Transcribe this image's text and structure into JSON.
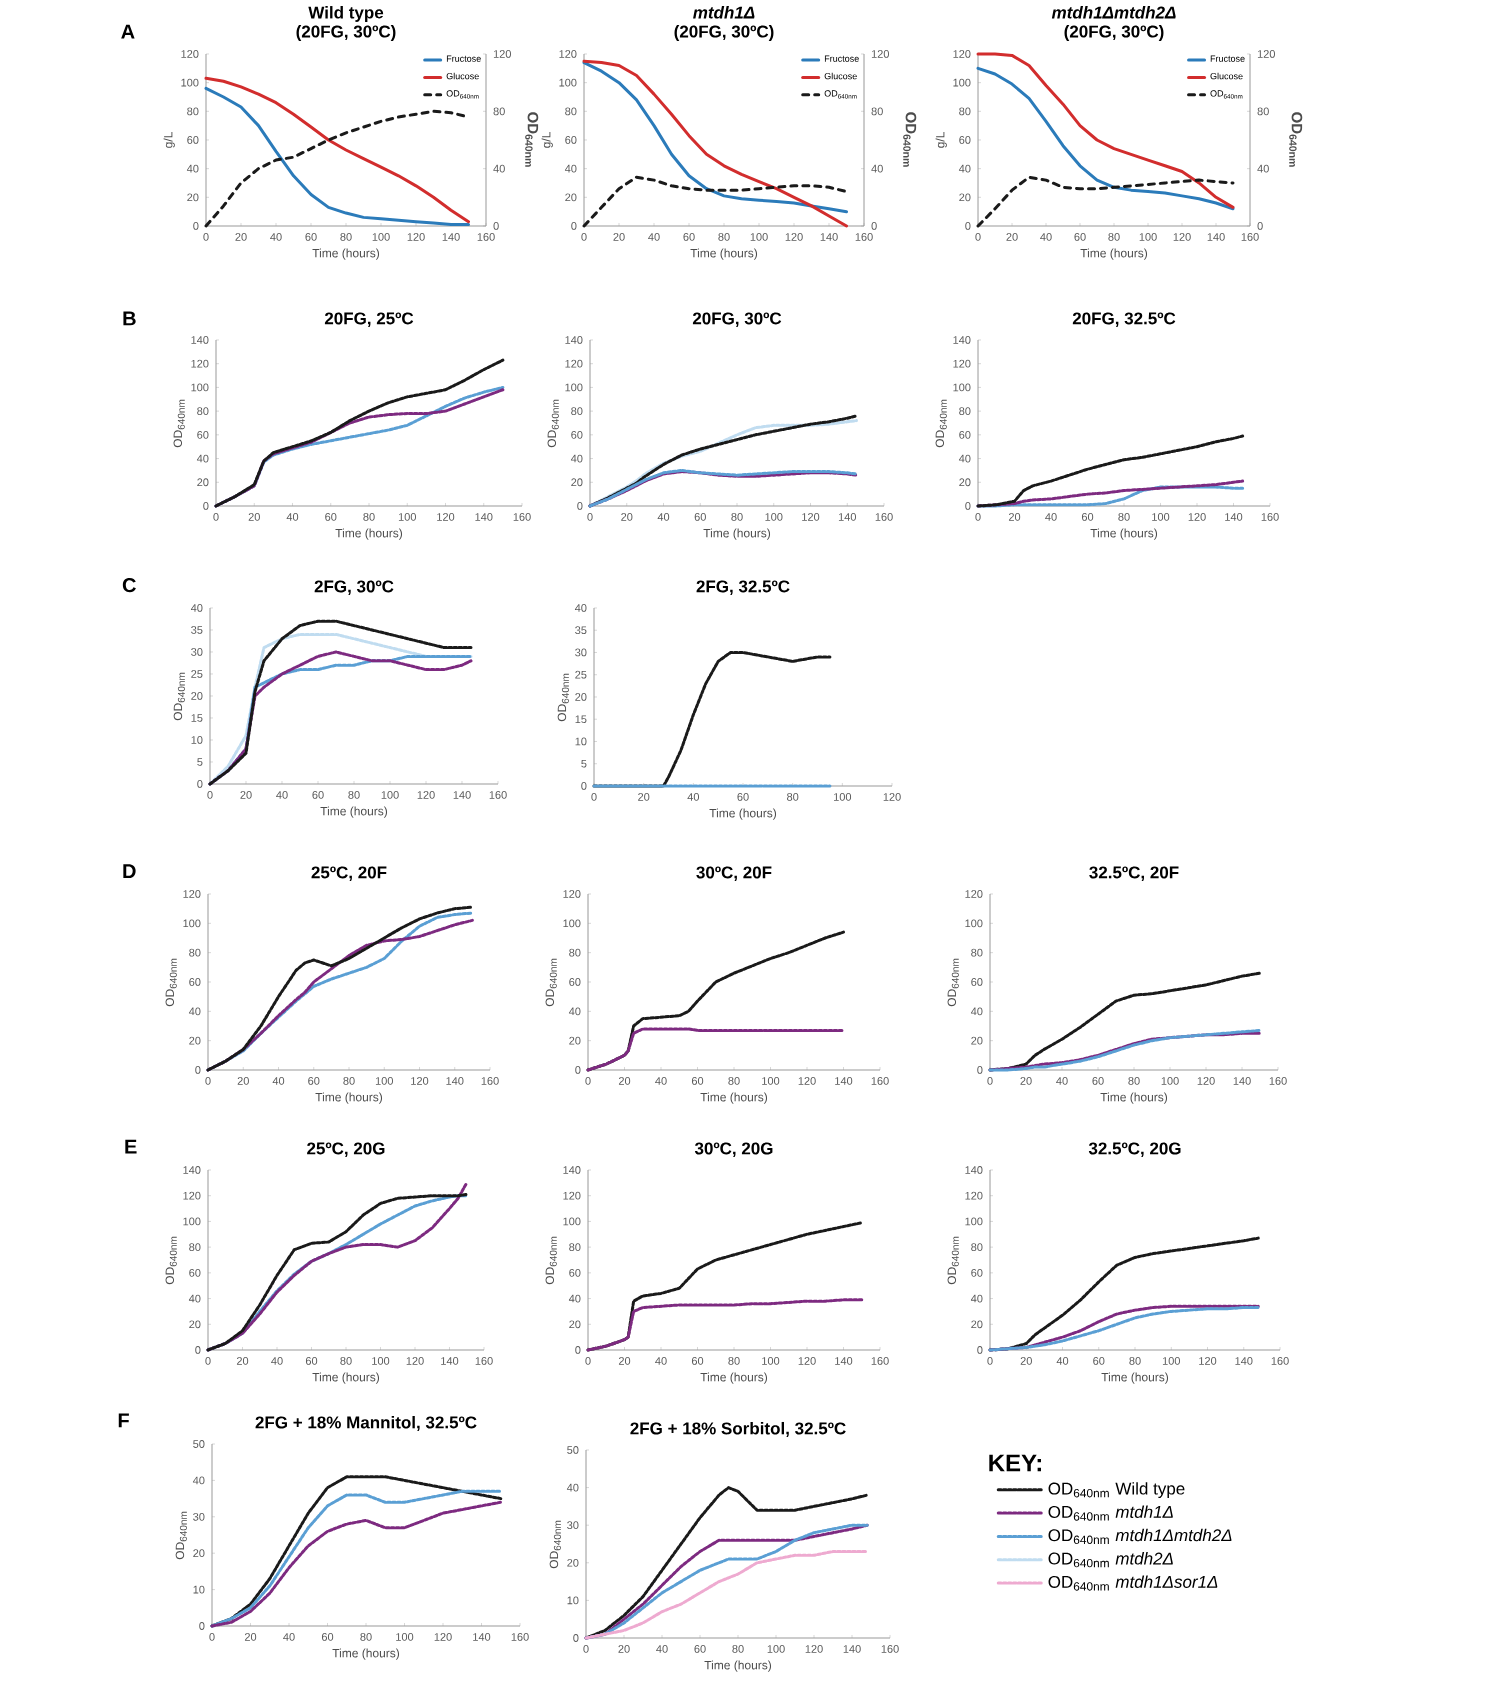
{
  "chart_data": [
    {
      "type": "line",
      "title": "Wild type",
      "subtitle": "(20FG, 30ºC)",
      "xlabel": "Time (hours)",
      "ylabel": "g/L",
      "y2label": "OD$_{640nm}$",
      "annotations": [
        "A"
      ],
      "legend": "top right",
      "xlim": [
        0,
        160
      ],
      "xticks": [
        0,
        20,
        40,
        60,
        80,
        100,
        120,
        140,
        160
      ],
      "ylim": [
        0,
        120
      ],
      "yticks": [
        0,
        20,
        40,
        60,
        80,
        100,
        120
      ],
      "y2lim": [
        0,
        120
      ],
      "y2ticks": [
        0,
        40,
        80,
        120
      ],
      "x": [
        0,
        10,
        20,
        30,
        40,
        50,
        60,
        70,
        80,
        90,
        100,
        110,
        120,
        130,
        140,
        150
      ],
      "series": [
        {
          "name": "Fructose",
          "color": "#2b7bba",
          "values": [
            96,
            90,
            83,
            70,
            52,
            35,
            22,
            13,
            9,
            6,
            5,
            4,
            3,
            2,
            1,
            1
          ]
        },
        {
          "name": "Glucose",
          "color": "#d22d2d",
          "values": [
            103,
            101,
            97,
            92,
            86,
            78,
            69,
            60,
            53,
            47,
            41,
            35,
            28,
            20,
            11,
            3
          ]
        },
        {
          "name": "OD$_{640nm}$",
          "color": "#1a1a1a",
          "axis": "y2",
          "line_style": "dashed",
          "values": [
            0,
            14,
            30,
            40,
            46,
            48,
            54,
            60,
            65,
            69,
            73,
            76,
            78,
            80,
            79,
            76
          ]
        }
      ]
    },
    {
      "type": "line",
      "title": "*mtdh1Δ*",
      "subtitle": "(20FG, 30ºC)",
      "xlabel": "Time (hours)",
      "ylabel": "g/L",
      "y2label": "OD$_{640nm}$",
      "legend": "top right",
      "xlim": [
        0,
        160
      ],
      "xticks": [
        0,
        20,
        40,
        60,
        80,
        100,
        120,
        140,
        160
      ],
      "ylim": [
        0,
        120
      ],
      "yticks": [
        0,
        20,
        40,
        60,
        80,
        100,
        120
      ],
      "y2lim": [
        0,
        120
      ],
      "y2ticks": [
        0,
        40,
        80,
        120
      ],
      "x": [
        0,
        10,
        20,
        30,
        40,
        50,
        60,
        70,
        80,
        90,
        100,
        110,
        120,
        130,
        140,
        150
      ],
      "series": [
        {
          "name": "Fructose",
          "color": "#2b7bba",
          "values": [
            114,
            108,
            100,
            88,
            70,
            50,
            35,
            26,
            21,
            19,
            18,
            17,
            16,
            14,
            12,
            10
          ]
        },
        {
          "name": "Glucose",
          "color": "#d22d2d",
          "values": [
            115,
            114,
            112,
            105,
            92,
            78,
            63,
            50,
            42,
            36,
            31,
            26,
            20,
            14,
            7,
            0
          ]
        },
        {
          "name": "OD$_{640nm}$",
          "color": "#1a1a1a",
          "axis": "y2",
          "line_style": "dashed",
          "values": [
            0,
            13,
            26,
            34,
            32,
            28,
            26,
            25,
            25,
            25,
            26,
            27,
            28,
            28,
            27,
            24
          ]
        }
      ]
    },
    {
      "type": "line",
      "title": "*mtdh1Δmtdh2Δ*",
      "subtitle": "(20FG, 30ºC)",
      "xlabel": "Time (hours)",
      "ylabel": "g/L",
      "y2label": "OD$_{640nm}$",
      "legend": "top right",
      "xlim": [
        0,
        160
      ],
      "xticks": [
        0,
        20,
        40,
        60,
        80,
        100,
        120,
        140,
        160
      ],
      "ylim": [
        0,
        120
      ],
      "yticks": [
        0,
        20,
        40,
        60,
        80,
        100,
        120
      ],
      "y2lim": [
        0,
        120
      ],
      "y2ticks": [
        0,
        40,
        80,
        120
      ],
      "x": [
        0,
        10,
        20,
        30,
        40,
        50,
        60,
        70,
        80,
        90,
        100,
        110,
        120,
        130,
        140,
        150
      ],
      "series": [
        {
          "name": "Fructose",
          "color": "#2b7bba",
          "values": [
            110,
            106,
            99,
            89,
            73,
            56,
            42,
            32,
            27,
            25,
            24,
            23,
            21,
            19,
            16,
            12
          ]
        },
        {
          "name": "Glucose",
          "color": "#d22d2d",
          "values": [
            120,
            120,
            119,
            112,
            98,
            85,
            70,
            60,
            54,
            50,
            46,
            42,
            38,
            30,
            20,
            13
          ]
        },
        {
          "name": "OD$_{640nm}$",
          "color": "#1a1a1a",
          "axis": "y2",
          "line_style": "dashed",
          "values": [
            0,
            12,
            25,
            34,
            32,
            27,
            26,
            26,
            27,
            28,
            29,
            30,
            31,
            32,
            31,
            30
          ]
        }
      ]
    },
    {
      "type": "line",
      "title": "20FG, 25ºC",
      "xlabel": "Time (hours)",
      "ylabel": "OD$_{640nm}$",
      "annotations": [
        "B"
      ],
      "line_style": "dotted",
      "xlim": [
        0,
        160
      ],
      "xticks": [
        0,
        20,
        40,
        60,
        80,
        100,
        120,
        140,
        160
      ],
      "ylim": [
        0,
        140
      ],
      "yticks": [
        0,
        20,
        40,
        60,
        80,
        100,
        120,
        140
      ],
      "x": [
        0,
        10,
        20,
        25,
        30,
        40,
        50,
        60,
        70,
        80,
        90,
        100,
        110,
        120,
        130,
        140,
        150
      ],
      "series": [
        {
          "color": "#5a9fd4",
          "values": [
            0,
            8,
            17,
            37,
            43,
            48,
            52,
            55,
            58,
            61,
            64,
            68,
            76,
            84,
            91,
            96,
            100
          ]
        },
        {
          "color": "#7d2a80",
          "values": [
            0,
            8,
            17,
            38,
            44,
            49,
            54,
            62,
            70,
            75,
            77,
            78,
            78,
            80,
            86,
            92,
            98
          ]
        },
        {
          "color": "#1a1a1a",
          "values": [
            0,
            8,
            18,
            38,
            45,
            50,
            55,
            62,
            72,
            80,
            87,
            92,
            95,
            98,
            106,
            115,
            123
          ]
        }
      ]
    },
    {
      "type": "line",
      "title": "20FG, 30ºC",
      "xlabel": "Time (hours)",
      "ylabel": "OD$_{640nm}$",
      "line_style": "dotted",
      "xlim": [
        0,
        160
      ],
      "xticks": [
        0,
        20,
        40,
        60,
        80,
        100,
        120,
        140,
        160
      ],
      "ylim": [
        0,
        140
      ],
      "yticks": [
        0,
        20,
        40,
        60,
        80,
        100,
        120,
        140
      ],
      "x": [
        0,
        10,
        20,
        25,
        30,
        40,
        50,
        60,
        70,
        80,
        90,
        100,
        110,
        120,
        130,
        140,
        145
      ],
      "series": [
        {
          "color": "#c0dcf0",
          "values": [
            0,
            8,
            16,
            21,
            27,
            36,
            42,
            46,
            53,
            60,
            66,
            68,
            68,
            68,
            69,
            71,
            72
          ]
        },
        {
          "color": "#1a1a1a",
          "values": [
            0,
            7,
            15,
            19,
            25,
            35,
            43,
            48,
            52,
            56,
            60,
            63,
            66,
            69,
            71,
            74,
            76
          ]
        },
        {
          "color": "#7d2a80",
          "values": [
            0,
            6,
            13,
            17,
            21,
            27,
            29,
            28,
            26,
            25,
            25,
            26,
            27,
            28,
            28,
            27,
            26
          ]
        },
        {
          "color": "#5a9fd4",
          "values": [
            0,
            6,
            14,
            18,
            22,
            28,
            30,
            28,
            27,
            26,
            27,
            28,
            29,
            29,
            29,
            28,
            27
          ]
        }
      ]
    },
    {
      "type": "line",
      "title": "20FG, 32.5ºC",
      "xlabel": "Time (hours)",
      "ylabel": "OD$_{640nm}$",
      "line_style": "dotted",
      "xlim": [
        0,
        160
      ],
      "xticks": [
        0,
        20,
        40,
        60,
        80,
        100,
        120,
        140,
        160
      ],
      "ylim": [
        0,
        140
      ],
      "yticks": [
        0,
        20,
        40,
        60,
        80,
        100,
        120,
        140
      ],
      "x": [
        0,
        10,
        20,
        25,
        30,
        40,
        50,
        60,
        70,
        80,
        90,
        100,
        110,
        120,
        130,
        140,
        145
      ],
      "series": [
        {
          "color": "#5a9fd4",
          "values": [
            0,
            0,
            1,
            1,
            1,
            1,
            1,
            1,
            2,
            6,
            13,
            16,
            16,
            16,
            16,
            15,
            15
          ]
        },
        {
          "color": "#7d2a80",
          "values": [
            0,
            1,
            2,
            4,
            5,
            6,
            8,
            10,
            11,
            13,
            14,
            15,
            16,
            17,
            18,
            20,
            21
          ]
        },
        {
          "color": "#1a1a1a",
          "values": [
            0,
            1,
            4,
            13,
            17,
            21,
            26,
            31,
            35,
            39,
            41,
            44,
            47,
            50,
            54,
            57,
            59
          ]
        }
      ]
    },
    {
      "type": "line",
      "title": "2FG, 30ºC",
      "xlabel": "Time (hours)",
      "ylabel": "OD$_{640nm}$",
      "annotations": [
        "C"
      ],
      "line_style": "dotted",
      "xlim": [
        0,
        160
      ],
      "xticks": [
        0,
        20,
        40,
        60,
        80,
        100,
        120,
        140,
        160
      ],
      "ylim": [
        0,
        40
      ],
      "yticks": [
        0,
        5,
        10,
        15,
        20,
        25,
        30,
        35,
        40
      ],
      "x": [
        0,
        10,
        20,
        25,
        30,
        40,
        50,
        60,
        70,
        80,
        90,
        100,
        110,
        120,
        130,
        140,
        145
      ],
      "series": [
        {
          "color": "#c0dcf0",
          "values": [
            0,
            4,
            11,
            22,
            31,
            33,
            34,
            34,
            34,
            33,
            32,
            31,
            30,
            29,
            29,
            29,
            29
          ]
        },
        {
          "color": "#5a9fd4",
          "values": [
            0,
            3,
            8,
            22,
            23,
            25,
            26,
            26,
            27,
            27,
            28,
            28,
            29,
            29,
            29,
            29,
            29
          ]
        },
        {
          "color": "#7d2a80",
          "values": [
            0,
            3,
            8,
            20,
            22,
            25,
            27,
            29,
            30,
            29,
            28,
            28,
            27,
            26,
            26,
            27,
            28
          ]
        },
        {
          "color": "#1a1a1a",
          "values": [
            0,
            3,
            7,
            21,
            28,
            33,
            36,
            37,
            37,
            36,
            35,
            34,
            33,
            32,
            31,
            31,
            31
          ]
        }
      ]
    },
    {
      "type": "line",
      "title": "2FG, 32.5ºC",
      "xlabel": "Time (hours)",
      "ylabel": "OD$_{640nm}$",
      "line_style": "dotted",
      "xlim": [
        0,
        120
      ],
      "xticks": [
        0,
        20,
        40,
        60,
        80,
        100,
        120
      ],
      "ylim": [
        0,
        40
      ],
      "yticks": [
        0,
        5,
        10,
        15,
        20,
        25,
        30,
        35,
        40
      ],
      "x": [
        0,
        10,
        20,
        25,
        28,
        30,
        35,
        40,
        45,
        50,
        55,
        60,
        70,
        80,
        90,
        95
      ],
      "series": [
        {
          "color": "#1a1a1a",
          "values": [
            0,
            0,
            0,
            0,
            0,
            2,
            8,
            16,
            23,
            28,
            30,
            30,
            29,
            28,
            29,
            29
          ]
        },
        {
          "color": "#5a9fd4",
          "values": [
            0,
            0,
            0,
            0,
            0,
            0,
            0,
            0,
            0,
            0,
            0,
            0,
            0,
            0,
            0,
            0
          ]
        }
      ]
    },
    {
      "type": "line",
      "title": "25ºC, 20F",
      "xlabel": "Time (hours)",
      "ylabel": "OD$_{640nm}$",
      "annotations": [
        "D"
      ],
      "line_style": "dotted",
      "xlim": [
        0,
        160
      ],
      "xticks": [
        0,
        20,
        40,
        60,
        80,
        100,
        120,
        140,
        160
      ],
      "ylim": [
        0,
        120
      ],
      "yticks": [
        0,
        20,
        40,
        60,
        80,
        100,
        120
      ],
      "x": [
        0,
        10,
        20,
        30,
        40,
        50,
        55,
        60,
        70,
        80,
        90,
        100,
        110,
        120,
        130,
        140,
        150
      ],
      "series": [
        {
          "color": "#5a9fd4",
          "values": [
            0,
            6,
            13,
            25,
            36,
            47,
            52,
            57,
            62,
            66,
            70,
            76,
            88,
            98,
            104,
            106,
            107
          ]
        },
        {
          "color": "#7d2a80",
          "values": [
            0,
            6,
            14,
            25,
            37,
            48,
            53,
            60,
            69,
            78,
            85,
            88,
            89,
            91,
            95,
            99,
            102
          ]
        },
        {
          "color": "#1a1a1a",
          "values": [
            0,
            6,
            14,
            30,
            50,
            68,
            73,
            75,
            71,
            76,
            83,
            90,
            97,
            103,
            107,
            110,
            111
          ]
        }
      ]
    },
    {
      "type": "line",
      "title": "30ºC, 20F",
      "xlabel": "Time (hours)",
      "ylabel": "OD$_{640nm}$",
      "line_style": "dotted",
      "xlim": [
        0,
        160
      ],
      "xticks": [
        0,
        20,
        40,
        60,
        80,
        100,
        120,
        140,
        160
      ],
      "ylim": [
        0,
        120
      ],
      "yticks": [
        0,
        20,
        40,
        60,
        80,
        100,
        120
      ],
      "x": [
        0,
        10,
        20,
        22,
        25,
        30,
        40,
        50,
        55,
        60,
        70,
        80,
        90,
        100,
        110,
        120,
        130,
        140
      ],
      "series": [
        {
          "color": "#1a1a1a",
          "values": [
            0,
            4,
            10,
            13,
            30,
            35,
            36,
            37,
            40,
            47,
            60,
            66,
            71,
            76,
            80,
            85,
            90,
            94
          ]
        },
        {
          "color": "#7d2a80",
          "values": [
            0,
            4,
            10,
            13,
            25,
            28,
            28,
            28,
            28,
            27,
            27,
            27,
            27,
            27,
            27,
            27,
            27,
            27
          ]
        }
      ]
    },
    {
      "type": "line",
      "title": "32.5ºC, 20F",
      "xlabel": "Time (hours)",
      "ylabel": "OD$_{640nm}$",
      "line_style": "dotted",
      "xlim": [
        0,
        160
      ],
      "xticks": [
        0,
        20,
        40,
        60,
        80,
        100,
        120,
        140,
        160
      ],
      "ylim": [
        0,
        120
      ],
      "yticks": [
        0,
        20,
        40,
        60,
        80,
        100,
        120
      ],
      "x": [
        0,
        10,
        20,
        25,
        30,
        40,
        50,
        60,
        70,
        80,
        90,
        100,
        110,
        120,
        130,
        140,
        150
      ],
      "series": [
        {
          "color": "#1a1a1a",
          "values": [
            0,
            1,
            4,
            10,
            14,
            21,
            29,
            38,
            47,
            51,
            52,
            54,
            56,
            58,
            61,
            64,
            66
          ]
        },
        {
          "color": "#7d2a80",
          "values": [
            0,
            1,
            2,
            3,
            4,
            5,
            7,
            10,
            14,
            18,
            21,
            22,
            23,
            24,
            24,
            25,
            25
          ]
        },
        {
          "color": "#5a9fd4",
          "values": [
            0,
            0,
            1,
            2,
            2,
            4,
            6,
            9,
            13,
            17,
            20,
            22,
            23,
            24,
            25,
            26,
            27
          ]
        }
      ]
    },
    {
      "type": "line",
      "title": "25ºC, 20G",
      "xlabel": "Time (hours)",
      "ylabel": "OD$_{640nm}$",
      "annotations": [
        "E"
      ],
      "line_style": "dotted",
      "xlim": [
        0,
        160
      ],
      "xticks": [
        0,
        20,
        40,
        60,
        80,
        100,
        120,
        140,
        160
      ],
      "ylim": [
        0,
        140
      ],
      "yticks": [
        0,
        20,
        40,
        60,
        80,
        100,
        120,
        140
      ],
      "x": [
        0,
        10,
        20,
        30,
        40,
        50,
        60,
        70,
        80,
        90,
        100,
        110,
        120,
        130,
        140,
        145,
        150
      ],
      "series": [
        {
          "color": "#5a9fd4",
          "values": [
            0,
            5,
            13,
            30,
            46,
            59,
            69,
            75,
            82,
            90,
            98,
            105,
            112,
            116,
            119,
            120,
            120
          ]
        },
        {
          "color": "#7d2a80",
          "values": [
            0,
            5,
            13,
            28,
            45,
            58,
            69,
            75,
            80,
            82,
            82,
            80,
            85,
            95,
            110,
            118,
            130
          ]
        },
        {
          "color": "#1a1a1a",
          "values": [
            0,
            5,
            15,
            35,
            58,
            78,
            83,
            84,
            92,
            105,
            114,
            118,
            119,
            120,
            120,
            120,
            121
          ]
        }
      ]
    },
    {
      "type": "line",
      "title": "30ºC, 20G",
      "xlabel": "Time (hours)",
      "ylabel": "OD$_{640nm}$",
      "line_style": "dotted",
      "xlim": [
        0,
        160
      ],
      "xticks": [
        0,
        20,
        40,
        60,
        80,
        100,
        120,
        140,
        160
      ],
      "ylim": [
        0,
        140
      ],
      "yticks": [
        0,
        20,
        40,
        60,
        80,
        100,
        120,
        140
      ],
      "x": [
        0,
        10,
        20,
        22,
        25,
        30,
        40,
        50,
        60,
        70,
        80,
        90,
        100,
        110,
        120,
        130,
        140,
        150
      ],
      "series": [
        {
          "color": "#1a1a1a",
          "values": [
            0,
            3,
            8,
            10,
            38,
            42,
            44,
            48,
            63,
            70,
            74,
            78,
            82,
            86,
            90,
            93,
            96,
            99
          ]
        },
        {
          "color": "#7d2a80",
          "values": [
            0,
            3,
            8,
            10,
            30,
            33,
            34,
            35,
            35,
            35,
            35,
            36,
            36,
            37,
            38,
            38,
            39,
            39
          ]
        }
      ]
    },
    {
      "type": "line",
      "title": "32.5ºC, 20G",
      "xlabel": "Time (hours)",
      "ylabel": "OD$_{640nm}$",
      "line_style": "dotted",
      "xlim": [
        0,
        160
      ],
      "xticks": [
        0,
        20,
        40,
        60,
        80,
        100,
        120,
        140,
        160
      ],
      "ylim": [
        0,
        140
      ],
      "yticks": [
        0,
        20,
        40,
        60,
        80,
        100,
        120,
        140
      ],
      "x": [
        0,
        10,
        20,
        25,
        30,
        40,
        50,
        60,
        70,
        80,
        90,
        100,
        110,
        120,
        130,
        140,
        148
      ],
      "series": [
        {
          "color": "#1a1a1a",
          "values": [
            0,
            1,
            5,
            12,
            17,
            27,
            39,
            53,
            66,
            72,
            75,
            77,
            79,
            81,
            83,
            85,
            87
          ]
        },
        {
          "color": "#7d2a80",
          "values": [
            0,
            1,
            2,
            4,
            6,
            10,
            15,
            22,
            28,
            31,
            33,
            34,
            34,
            34,
            34,
            34,
            34
          ]
        },
        {
          "color": "#5a9fd4",
          "values": [
            0,
            1,
            2,
            3,
            4,
            7,
            11,
            15,
            20,
            25,
            28,
            30,
            31,
            32,
            32,
            33,
            33
          ]
        }
      ]
    },
    {
      "type": "line",
      "title": "2FG + 18% Mannitol, 32.5ºC",
      "xlabel": "Time (hours)",
      "ylabel": "OD$_{640nm}$",
      "annotations": [
        "F"
      ],
      "line_style": "dotted",
      "xlim": [
        0,
        160
      ],
      "xticks": [
        0,
        20,
        40,
        60,
        80,
        100,
        120,
        140,
        160
      ],
      "ylim": [
        0,
        50
      ],
      "yticks": [
        0,
        10,
        20,
        30,
        40,
        50
      ],
      "x": [
        0,
        10,
        20,
        30,
        40,
        50,
        60,
        70,
        80,
        90,
        100,
        110,
        120,
        130,
        140,
        150
      ],
      "series": [
        {
          "color": "#1a1a1a",
          "values": [
            0,
            2,
            6,
            13,
            22,
            31,
            38,
            41,
            41,
            41,
            40,
            39,
            38,
            37,
            36,
            35
          ]
        },
        {
          "color": "#5a9fd4",
          "values": [
            0,
            2,
            5,
            11,
            19,
            27,
            33,
            36,
            36,
            34,
            34,
            35,
            36,
            37,
            37,
            37
          ]
        },
        {
          "color": "#7d2a80",
          "values": [
            0,
            1,
            4,
            9,
            16,
            22,
            26,
            28,
            29,
            27,
            27,
            29,
            31,
            32,
            33,
            34
          ]
        }
      ]
    },
    {
      "type": "line",
      "title": "2FG + 18% Sorbitol, 32.5ºC",
      "xlabel": "Time (hours)",
      "ylabel": "OD$_{640nm}$",
      "legend": "right",
      "legend_title": "KEY:",
      "line_style": "dotted",
      "xlim": [
        0,
        160
      ],
      "xticks": [
        0,
        20,
        40,
        60,
        80,
        100,
        120,
        140,
        160
      ],
      "ylim": [
        0,
        50
      ],
      "yticks": [
        0,
        10,
        20,
        30,
        40,
        50
      ],
      "x": [
        0,
        10,
        20,
        30,
        40,
        50,
        60,
        70,
        75,
        80,
        90,
        100,
        110,
        120,
        130,
        140,
        148
      ],
      "series": [
        {
          "name": "OD$_{640nm}$   Wild type",
          "color": "#1a1a1a",
          "values": [
            0,
            2,
            6,
            11,
            18,
            25,
            32,
            38,
            40,
            39,
            34,
            34,
            34,
            35,
            36,
            37,
            38
          ]
        },
        {
          "name": "OD$_{640nm}$   *mtdh1Δ*",
          "color": "#7d2a80",
          "values": [
            0,
            1,
            5,
            9,
            14,
            19,
            23,
            26,
            26,
            26,
            26,
            26,
            26,
            27,
            28,
            29,
            30
          ]
        },
        {
          "name": "OD$_{640nm}$   *mtdh1Δmtdh2Δ*",
          "color": "#5a9fd4",
          "values": [
            0,
            1,
            4,
            8,
            12,
            15,
            18,
            20,
            21,
            21,
            21,
            23,
            26,
            28,
            29,
            30,
            30
          ]
        },
        {
          "name": "OD$_{640nm}$   *mtdh2Δ*",
          "color": "#c0dcf0",
          "values": [
            null,
            null,
            null,
            null,
            null,
            null,
            null,
            null,
            null,
            null,
            null,
            null,
            null,
            null,
            null,
            null,
            null
          ]
        },
        {
          "name": "OD$_{640nm}$   *mtdh1Δsor1Δ*",
          "color": "#eeaad0",
          "values": [
            0,
            1,
            2,
            4,
            7,
            9,
            12,
            15,
            16,
            17,
            20,
            21,
            22,
            22,
            23,
            23,
            23
          ]
        }
      ]
    }
  ]
}
